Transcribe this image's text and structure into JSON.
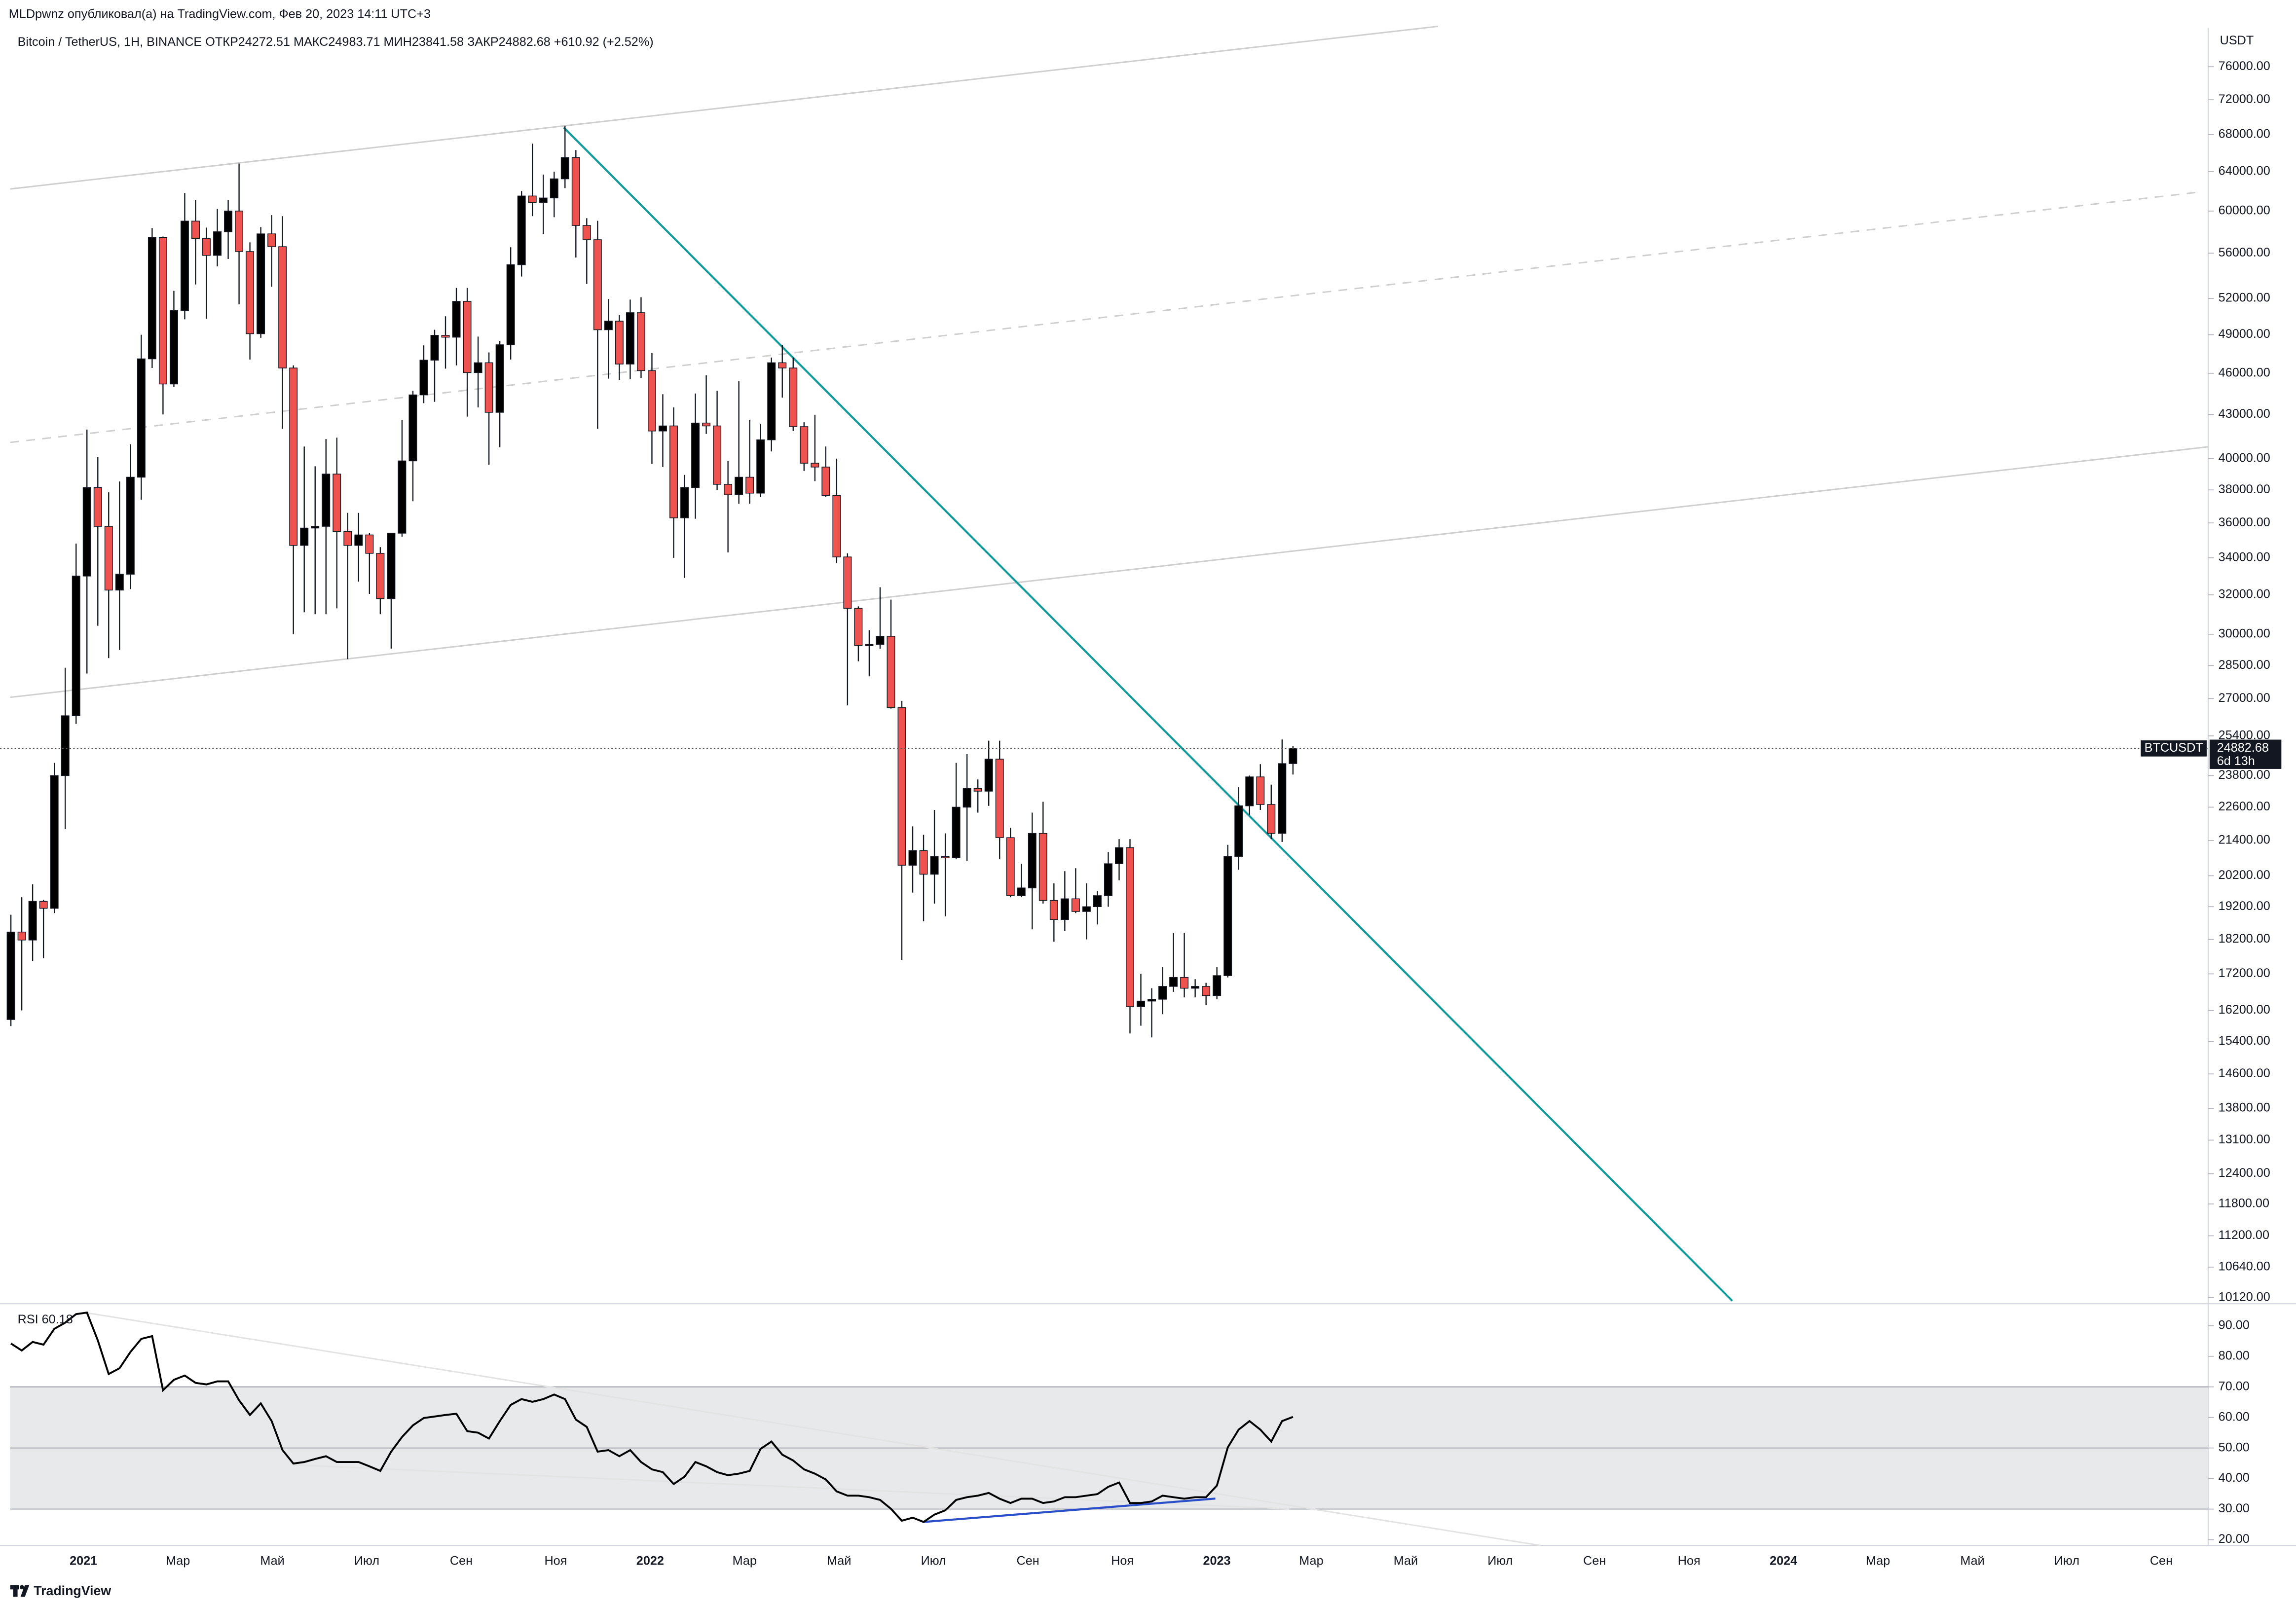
{
  "published": "MLDpwnz опубликовал(а) на TradingView.com, Фев 20, 2023 14:11 UTC+3",
  "brand": "TradingView",
  "header_labels": [
    "ОТКР",
    "МАКС",
    "МИН",
    "ЗАКР"
  ],
  "change_label": "+610.92 (+2.52%)",
  "symbol_label": "BTCUSDT",
  "countdown": "6d 13h",
  "currency": "USDT",
  "time_labels": [
    "2021",
    "Мар",
    "Май",
    "Июл",
    "Сен",
    "Ноя",
    "2022",
    "Мар",
    "Май",
    "Июл",
    "Сен",
    "Ноя",
    "2023",
    "Мар",
    "Май",
    "Июл",
    "Сен",
    "Ноя",
    "2024",
    "Мар",
    "Май",
    "Июл",
    "Сен"
  ],
  "chart_data": [
    {
      "type": "candlestick",
      "title": "Bitcoin / TetherUS, 1H, BINANCE",
      "log_scale": true,
      "up_color": "#000000",
      "down_color": "#ef5350",
      "ylim": [
        10020,
        81000
      ],
      "yticks": [
        {
          "value": 76000,
          "label": "76000.00"
        },
        {
          "value": 72000,
          "label": "72000.00"
        },
        {
          "value": 68000,
          "label": "68000.00"
        },
        {
          "value": 64000,
          "label": "64000.00"
        },
        {
          "value": 60000,
          "label": "60000.00"
        },
        {
          "value": 56000,
          "label": "56000.00"
        },
        {
          "value": 52000,
          "label": "52000.00"
        },
        {
          "value": 49000,
          "label": "49000.00"
        },
        {
          "value": 46000,
          "label": "46000.00"
        },
        {
          "value": 43000,
          "label": "43000.00"
        },
        {
          "value": 40000,
          "label": "40000.00"
        },
        {
          "value": 38000,
          "label": "38000.00"
        },
        {
          "value": 36000,
          "label": "36000.00"
        },
        {
          "value": 34000,
          "label": "34000.00"
        },
        {
          "value": 32000,
          "label": "32000.00"
        },
        {
          "value": 30000,
          "label": "30000.00"
        },
        {
          "value": 28500,
          "label": "28500.00"
        },
        {
          "value": 27000,
          "label": "27000.00"
        },
        {
          "value": 25400,
          "label": "25400.00"
        },
        {
          "value": 23800,
          "label": "23800.00"
        },
        {
          "value": 22600,
          "label": "22600.00"
        },
        {
          "value": 21400,
          "label": "21400.00"
        },
        {
          "value": 20200,
          "label": "20200.00"
        },
        {
          "value": 19200,
          "label": "19200.00"
        },
        {
          "value": 18200,
          "label": "18200.00"
        },
        {
          "value": 17200,
          "label": "17200.00"
        },
        {
          "value": 16200,
          "label": "16200.00"
        },
        {
          "value": 15400,
          "label": "15400.00"
        },
        {
          "value": 14600,
          "label": "14600.00"
        },
        {
          "value": 13800,
          "label": "13800.00"
        },
        {
          "value": 13100,
          "label": "13100.00"
        },
        {
          "value": 12400,
          "label": "12400.00"
        },
        {
          "value": 11800,
          "label": "11800.00"
        },
        {
          "value": 11200,
          "label": "11200.00"
        },
        {
          "value": 10640,
          "label": "10640.00"
        },
        {
          "value": 10120,
          "label": "10120.00"
        }
      ],
      "open": [
        15960,
        18420,
        18180,
        19370,
        19150,
        23800,
        26250,
        33000,
        38150,
        35800,
        32250,
        33100,
        38800,
        47100,
        57450,
        45200,
        50970,
        59020,
        57350,
        55800,
        58000,
        60000,
        56150,
        49080,
        57800,
        56600,
        46400,
        34700,
        35700,
        35800,
        39000,
        35500,
        34700,
        35300,
        34250,
        31800,
        35400,
        39850,
        44400,
        47000,
        48950,
        48800,
        51750,
        46050,
        46800,
        43150,
        48200,
        54950,
        61500,
        60850,
        61300,
        63250,
        65500,
        58600,
        57250,
        49400,
        50100,
        46700,
        50800,
        46200,
        41850,
        42200,
        36300,
        38150,
        42400,
        42200,
        38350,
        37700,
        38800,
        37800,
        41250,
        46800,
        46400,
        42150,
        39700,
        39450,
        37650,
        34050,
        31300,
        29450,
        29500,
        29900,
        26600,
        20550,
        21050,
        20250,
        20850,
        20800,
        22600,
        23300,
        23200,
        24450,
        21500,
        19550,
        19800,
        21650,
        19400,
        18800,
        19450,
        19050,
        19200,
        19550,
        20600,
        21150,
        16300,
        16450,
        16500,
        16850,
        17100,
        16800,
        16850,
        16600,
        17150,
        20850,
        22650,
        23750,
        22700,
        21650,
        24272.51
      ],
      "high": [
        18950,
        19500,
        19920,
        19420,
        24300,
        28400,
        34800,
        41950,
        40100,
        37850,
        38530,
        40950,
        49000,
        58350,
        57550,
        52650,
        61800,
        61100,
        58400,
        60200,
        61100,
        64850,
        57000,
        58450,
        59600,
        59500,
        46600,
        40800,
        39500,
        41300,
        41400,
        36600,
        36600,
        35400,
        34600,
        35400,
        42600,
        44700,
        48150,
        49400,
        50500,
        52900,
        52900,
        48850,
        47600,
        48500,
        56550,
        62000,
        67000,
        63700,
        64000,
        69000,
        66300,
        59300,
        59050,
        51950,
        50600,
        51900,
        52100,
        47550,
        44450,
        43500,
        38950,
        44500,
        45850,
        44700,
        39850,
        45400,
        42600,
        42350,
        47200,
        48200,
        47200,
        42450,
        42980,
        40800,
        40000,
        34250,
        31400,
        30200,
        32400,
        31750,
        26900,
        21900,
        21600,
        22500,
        21650,
        24300,
        24650,
        23650,
        25200,
        25200,
        21850,
        20600,
        22400,
        22800,
        19950,
        20350,
        20450,
        19950,
        19700,
        21000,
        21450,
        21450,
        17200,
        16800,
        17400,
        18400,
        18400,
        17050,
        16950,
        17400,
        21250,
        23350,
        23800,
        24250,
        23450,
        25250,
        24983.71
      ],
      "low": [
        15790,
        16200,
        17570,
        17650,
        19000,
        21800,
        25900,
        28130,
        30420,
        28850,
        29240,
        32300,
        37400,
        46400,
        43000,
        45000,
        50250,
        53200,
        50300,
        54800,
        55470,
        51500,
        47050,
        48750,
        53000,
        42000,
        30000,
        31100,
        31000,
        31000,
        31300,
        28800,
        32700,
        32050,
        31000,
        29300,
        35200,
        37300,
        43800,
        43900,
        46350,
        46600,
        42850,
        43500,
        39600,
        40750,
        47050,
        53900,
        59500,
        57800,
        59400,
        62300,
        55600,
        53250,
        42000,
        45600,
        45500,
        45550,
        45650,
        39650,
        39450,
        34000,
        32900,
        36250,
        41650,
        38000,
        34300,
        37150,
        37150,
        37550,
        40470,
        44200,
        41850,
        39200,
        38550,
        37550,
        33700,
        26700,
        28700,
        28000,
        29300,
        26560,
        17600,
        19650,
        18750,
        19300,
        18900,
        20750,
        20700,
        22400,
        22650,
        20750,
        19500,
        19500,
        18500,
        19300,
        18130,
        18450,
        19000,
        18200,
        18650,
        19200,
        20050,
        15600,
        15800,
        15500,
        16100,
        16700,
        16550,
        16550,
        16350,
        16500,
        17100,
        20400,
        22300,
        22500,
        21450,
        21350,
        23841.58
      ],
      "close": [
        18420,
        18180,
        19370,
        19150,
        23800,
        26250,
        33000,
        38150,
        35800,
        32250,
        33100,
        38800,
        47100,
        57450,
        45200,
        50970,
        59020,
        57350,
        55800,
        58000,
        60000,
        56150,
        49080,
        57800,
        56600,
        46400,
        34700,
        35700,
        35800,
        39000,
        35500,
        34700,
        35300,
        34250,
        31800,
        35400,
        39850,
        44400,
        47000,
        48950,
        48800,
        51750,
        46050,
        46800,
        43150,
        48200,
        54950,
        61500,
        60850,
        61300,
        63250,
        65500,
        58600,
        57250,
        49400,
        50100,
        46700,
        50800,
        46200,
        41850,
        42200,
        36300,
        38150,
        42400,
        42200,
        38350,
        37700,
        38800,
        37800,
        41250,
        46800,
        46400,
        42150,
        39700,
        39450,
        37650,
        34050,
        31300,
        29450,
        29500,
        29900,
        26600,
        20550,
        21050,
        20250,
        20850,
        20800,
        22600,
        23300,
        23200,
        24450,
        21500,
        19550,
        19800,
        21650,
        19400,
        18800,
        19450,
        19050,
        19200,
        19550,
        20600,
        21150,
        16300,
        16450,
        16500,
        16850,
        17100,
        16800,
        16850,
        16600,
        17150,
        20850,
        22650,
        23750,
        22700,
        21650,
        24271.76,
        24882.68
      ]
    },
    {
      "type": "line",
      "title": "RSI",
      "color": "#000000",
      "ylim": [
        18.1,
        95.75
      ],
      "levels": [
        30,
        50,
        70
      ],
      "yticks": [
        {
          "value": 90,
          "label": "90.00"
        },
        {
          "value": 80,
          "label": "80.00"
        },
        {
          "value": 70,
          "label": "70.00"
        },
        {
          "value": 60,
          "label": "60.00"
        },
        {
          "value": 50,
          "label": "50.00"
        },
        {
          "value": 40,
          "label": "40.00"
        },
        {
          "value": 30,
          "label": "30.00"
        },
        {
          "value": 20,
          "label": "20.00"
        }
      ],
      "values": [
        84.2,
        81.9,
        84.7,
        83.8,
        89.0,
        91.0,
        93.8,
        94.3,
        85.2,
        74.2,
        76.1,
        81.4,
        85.7,
        86.6,
        68.9,
        72.3,
        73.7,
        71.3,
        70.8,
        71.8,
        71.8,
        65.6,
        60.8,
        64.6,
        58.8,
        49.3,
        44.9,
        45.4,
        46.4,
        47.3,
        45.4,
        45.4,
        45.4,
        44.0,
        42.5,
        48.8,
        53.6,
        57.4,
        59.8,
        60.3,
        60.8,
        61.2,
        55.5,
        55.0,
        53.1,
        58.8,
        64.1,
        66.0,
        65.1,
        66.0,
        67.5,
        66.0,
        59.3,
        56.9,
        48.8,
        49.3,
        47.3,
        49.3,
        45.4,
        43.0,
        42.1,
        38.2,
        40.6,
        45.4,
        44.0,
        42.1,
        41.1,
        41.6,
        42.5,
        49.7,
        52.1,
        47.8,
        45.9,
        43.0,
        41.6,
        39.7,
        35.8,
        34.4,
        34.4,
        33.9,
        33.0,
        30.1,
        26.2,
        27.2,
        25.8,
        28.2,
        29.6,
        33.0,
        33.9,
        34.4,
        35.3,
        33.4,
        32.0,
        33.4,
        33.4,
        32.0,
        32.5,
        33.9,
        33.9,
        34.4,
        34.9,
        37.3,
        38.7,
        32.0,
        32.0,
        32.5,
        34.4,
        33.9,
        33.4,
        33.9,
        33.9,
        37.7,
        50.2,
        56.0,
        58.8,
        56.0,
        52.1,
        58.8,
        60.18
      ]
    }
  ]
}
